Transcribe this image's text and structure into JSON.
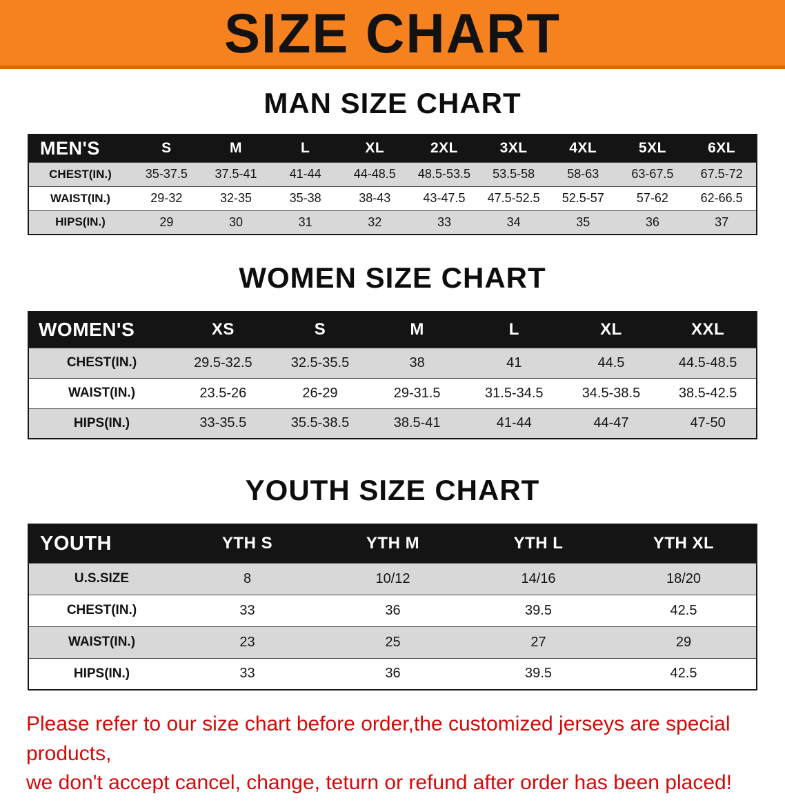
{
  "banner": {
    "title": "SIZE CHART"
  },
  "sections": {
    "men": {
      "heading": "MAN SIZE CHART",
      "table": {
        "header": [
          "MEN'S",
          "S",
          "M",
          "L",
          "XL",
          "2XL",
          "3XL",
          "4XL",
          "5XL",
          "6XL"
        ],
        "rows": [
          [
            "CHEST(IN.)",
            "35-37.5",
            "37.5-41",
            "41-44",
            "44-48.5",
            "48.5-53.5",
            "53.5-58",
            "58-63",
            "63-67.5",
            "67.5-72"
          ],
          [
            "WAIST(IN.)",
            "29-32",
            "32-35",
            "35-38",
            "38-43",
            "43-47.5",
            "47.5-52.5",
            "52.5-57",
            "57-62",
            "62-66.5"
          ],
          [
            "HIPS(IN.)",
            "29",
            "30",
            "31",
            "32",
            "33",
            "34",
            "35",
            "36",
            "37"
          ]
        ]
      }
    },
    "women": {
      "heading": "WOMEN SIZE CHART",
      "table": {
        "header": [
          "WOMEN'S",
          "XS",
          "S",
          "M",
          "L",
          "XL",
          "XXL"
        ],
        "rows": [
          [
            "CHEST(IN.)",
            "29.5-32.5",
            "32.5-35.5",
            "38",
            "41",
            "44.5",
            "44.5-48.5"
          ],
          [
            "WAIST(IN.)",
            "23.5-26",
            "26-29",
            "29-31.5",
            "31.5-34.5",
            "34.5-38.5",
            "38.5-42.5"
          ],
          [
            "HIPS(IN.)",
            "33-35.5",
            "35.5-38.5",
            "38.5-41",
            "41-44",
            "44-47",
            "47-50"
          ]
        ]
      }
    },
    "youth": {
      "heading": "YOUTH SIZE CHART",
      "table": {
        "header": [
          "YOUTH",
          "YTH S",
          "YTH M",
          "YTH L",
          "YTH XL"
        ],
        "rows": [
          [
            "U.S.SIZE",
            "8",
            "10/12",
            "14/16",
            "18/20"
          ],
          [
            "CHEST(IN.)",
            "33",
            "36",
            "39.5",
            "42.5"
          ],
          [
            "WAIST(IN.)",
            "23",
            "25",
            "27",
            "29"
          ],
          [
            "HIPS(IN.)",
            "33",
            "36",
            "39.5",
            "42.5"
          ]
        ]
      }
    }
  },
  "disclaimer": {
    "line1": "Please refer to our size chart before order,the customized jerseys are special products,",
    "line2": "we don't accept cancel, change, teturn or refund after order has been placed!"
  },
  "colors": {
    "banner_orange": "#f6821f",
    "banner_edge": "#dd6a02",
    "header_black": "#141414",
    "row_gray": "#d8d8d8",
    "disclaimer_red": "#d40909"
  }
}
